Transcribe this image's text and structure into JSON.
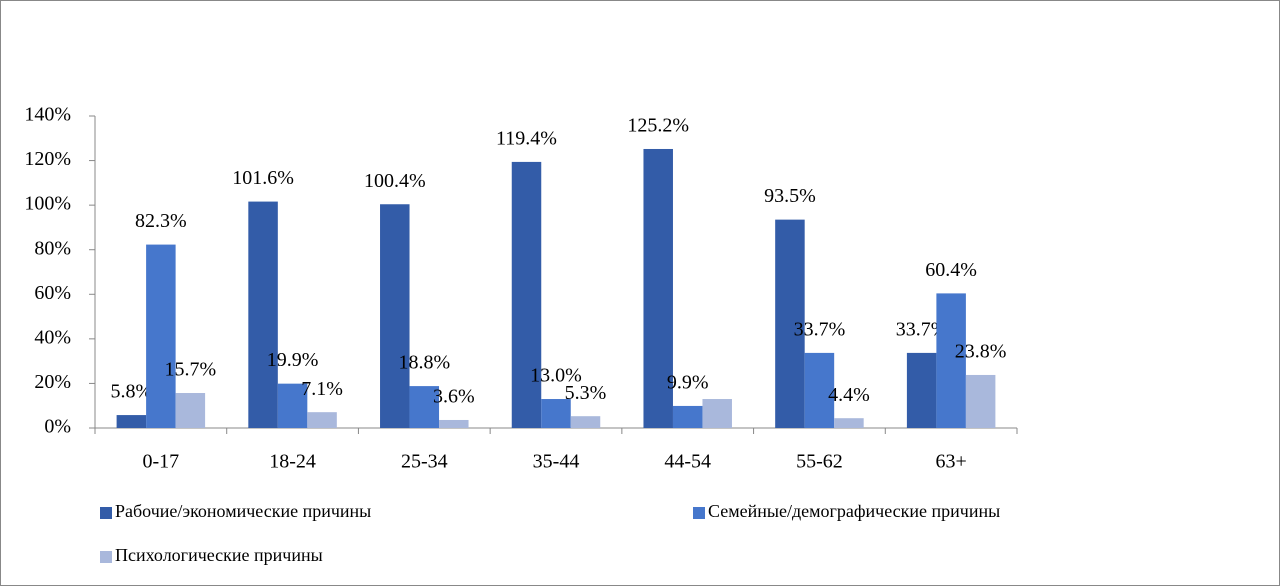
{
  "chart_data": {
    "type": "bar",
    "categories": [
      "0-17",
      "18-24",
      "25-34",
      "35-44",
      "44-54",
      "55-62",
      "63+"
    ],
    "series": [
      {
        "name": "Рабочие/экономические причины",
        "color": "#335ca8",
        "values": [
          5.8,
          101.6,
          100.4,
          119.4,
          125.2,
          93.5,
          33.7
        ],
        "value_labels": [
          "5.8%",
          "101.6%",
          "100.4%",
          "119.4%",
          "125.2%",
          "93.5%",
          "33.7%"
        ]
      },
      {
        "name": "Семейные/демографические причины",
        "color": "#4677cc",
        "values": [
          82.3,
          19.9,
          18.8,
          13.0,
          9.9,
          33.7,
          60.4
        ],
        "value_labels": [
          "82.3%",
          "19.9%",
          "18.8%",
          "13.0%",
          "9.9%",
          "33.7%",
          "60.4%"
        ]
      },
      {
        "name": "Психологические причины",
        "color": "#a9b8dc",
        "values": [
          15.7,
          7.1,
          3.6,
          5.3,
          13,
          4.4,
          23.8
        ],
        "value_labels": [
          "15.7%",
          "7.1%",
          "3.6%",
          "5.3%",
          null,
          "4.4%",
          "23.8%"
        ]
      }
    ],
    "ylim": [
      0,
      140
    ],
    "yticks": [
      {
        "value": 0,
        "label": "0%"
      },
      {
        "value": 20,
        "label": "20%"
      },
      {
        "value": 40,
        "label": "40%"
      },
      {
        "value": 60,
        "label": "60%"
      },
      {
        "value": 80,
        "label": "80%"
      },
      {
        "value": 100,
        "label": "100%"
      },
      {
        "value": 120,
        "label": "120%"
      },
      {
        "value": 140,
        "label": "140%"
      }
    ],
    "grid": false,
    "legend": "bottom"
  }
}
